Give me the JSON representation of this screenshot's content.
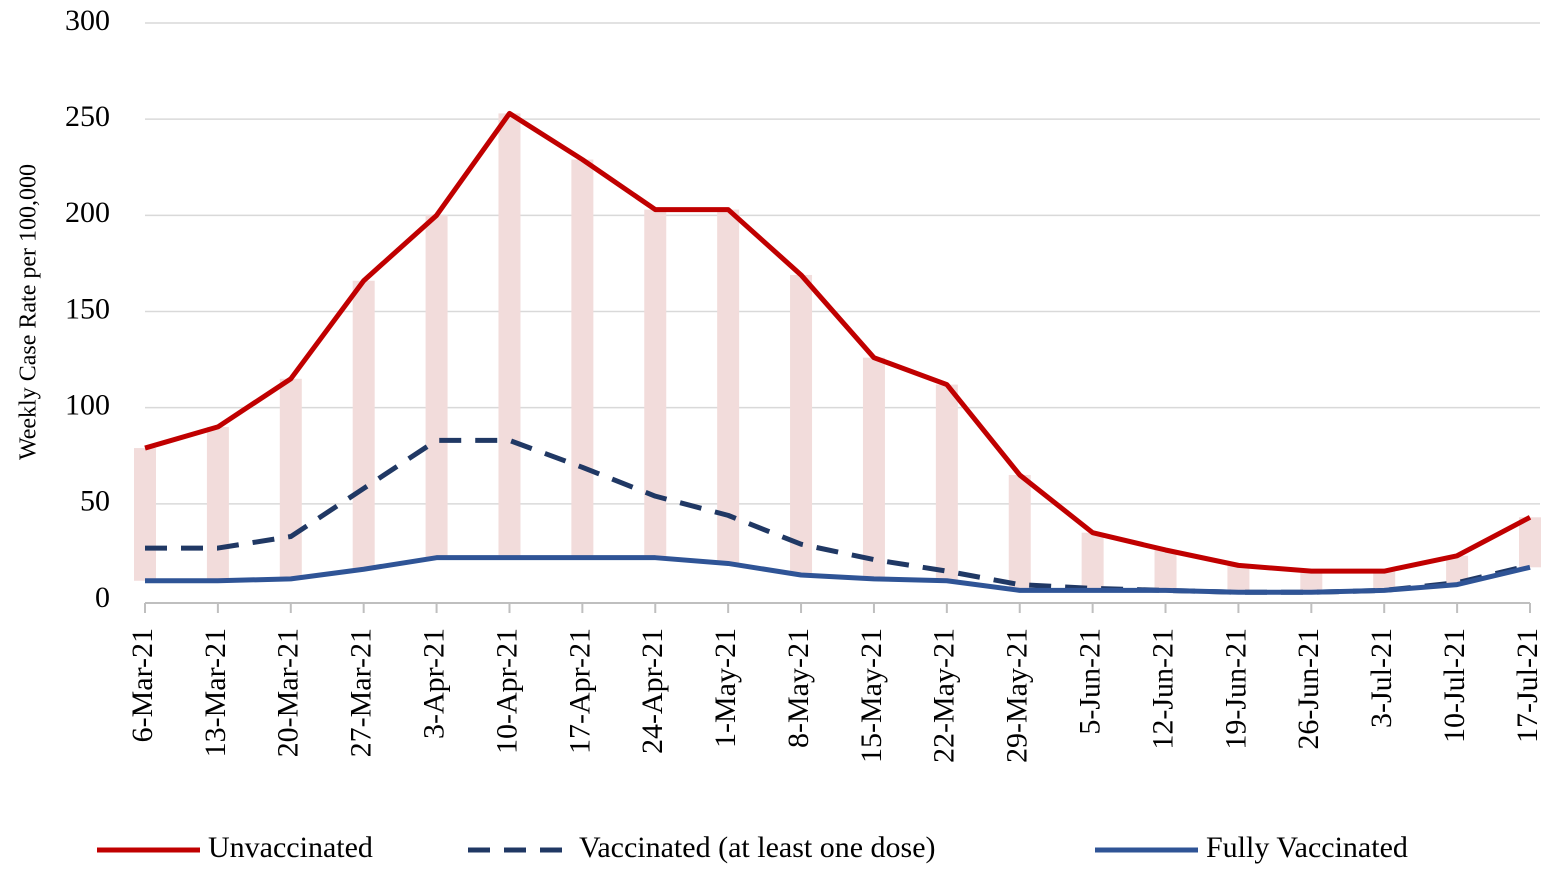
{
  "chart_data": {
    "type": "line",
    "y_axis_label": "Weekly Case Rate per 100,000",
    "categories": [
      "6-Mar-21",
      "13-Mar-21",
      "20-Mar-21",
      "27-Mar-21",
      "3-Apr-21",
      "10-Apr-21",
      "17-Apr-21",
      "24-Apr-21",
      "1-May-21",
      "8-May-21",
      "15-May-21",
      "22-May-21",
      "29-May-21",
      "5-Jun-21",
      "12-Jun-21",
      "19-Jun-21",
      "26-Jun-21",
      "3-Jul-21",
      "10-Jul-21",
      "17-Jul-21"
    ],
    "series": [
      {
        "name": "Unvaccinated",
        "color": "#c00000",
        "line_style": "solid",
        "values": [
          79,
          90,
          115,
          166,
          200,
          253,
          229,
          203,
          203,
          169,
          126,
          112,
          65,
          35,
          26,
          18,
          15,
          15,
          23,
          43
        ]
      },
      {
        "name": "Vaccinated (at least one dose)",
        "color": "#203864",
        "line_style": "dashed",
        "values": [
          27,
          27,
          33,
          58,
          83,
          83,
          69,
          54,
          44,
          29,
          21,
          15,
          8,
          6,
          5,
          4,
          4,
          5,
          9,
          18
        ]
      },
      {
        "name": "Fully Vaccinated",
        "color": "#2f5496",
        "line_style": "solid",
        "values": [
          10,
          10,
          11,
          16,
          22,
          22,
          22,
          22,
          19,
          13,
          11,
          10,
          5,
          5,
          5,
          4,
          4,
          5,
          8,
          17
        ]
      }
    ],
    "hi_lo_color": "#f2dcdb",
    "ylim": [
      0,
      300
    ],
    "yticks": [
      0,
      50,
      100,
      150,
      200,
      250,
      300
    ],
    "grid": true,
    "legend": "bottom"
  }
}
